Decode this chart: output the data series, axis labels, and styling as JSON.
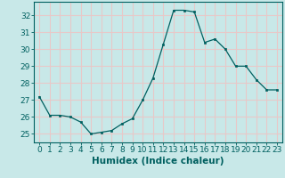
{
  "x": [
    0,
    1,
    2,
    3,
    4,
    5,
    6,
    7,
    8,
    9,
    10,
    11,
    12,
    13,
    14,
    15,
    16,
    17,
    18,
    19,
    20,
    21,
    22,
    23
  ],
  "y": [
    27.2,
    26.1,
    26.1,
    26.0,
    25.7,
    25.0,
    25.1,
    25.2,
    25.6,
    25.9,
    27.0,
    28.3,
    30.3,
    32.3,
    32.3,
    32.2,
    30.4,
    30.6,
    30.0,
    29.0,
    29.0,
    28.2,
    27.6,
    27.6
  ],
  "line_color": "#006060",
  "marker_color": "#006060",
  "bg_color": "#c8e8e8",
  "grid_color": "#e8c8c8",
  "xlabel": "Humidex (Indice chaleur)",
  "ylabel_ticks": [
    25,
    26,
    27,
    28,
    29,
    30,
    31,
    32
  ],
  "ylim": [
    24.5,
    32.8
  ],
  "xlim": [
    -0.5,
    23.5
  ],
  "tick_color": "#006060",
  "label_color": "#006060",
  "font_size_label": 7.5,
  "font_size_tick": 6.5
}
